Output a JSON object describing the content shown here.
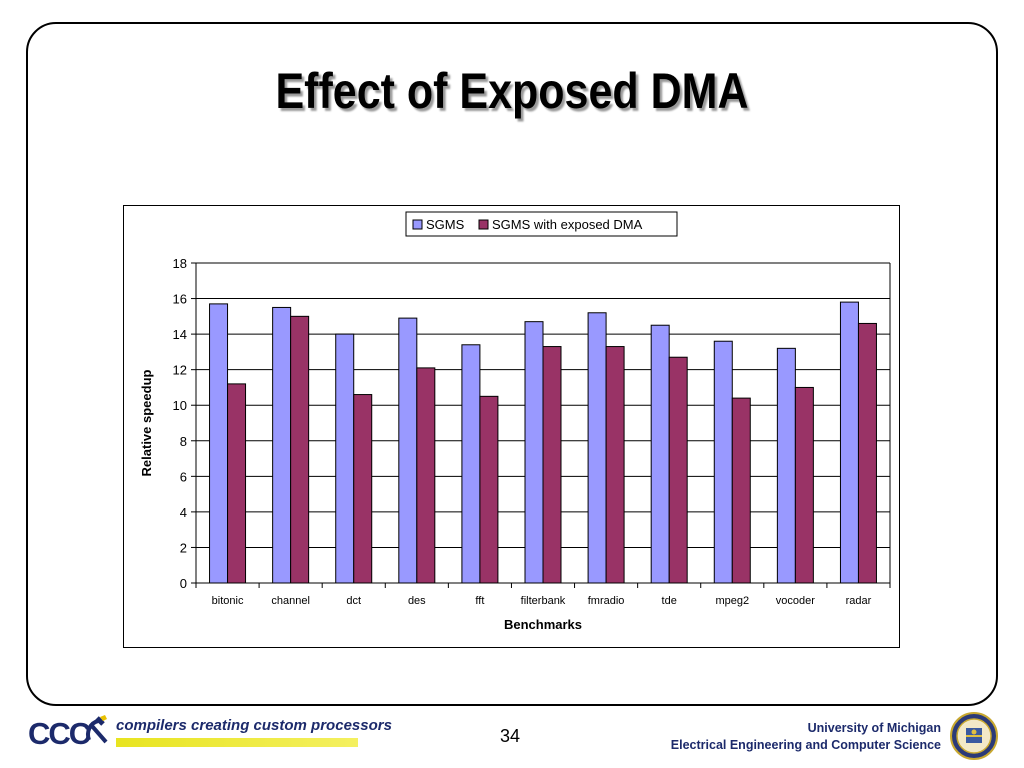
{
  "slide": {
    "title": "Effect of Exposed DMA",
    "page_number": "34"
  },
  "footer": {
    "logo_text": "CCC",
    "tagline": "compilers creating custom processors",
    "university": "University of Michigan",
    "department": "Electrical Engineering and Computer Science"
  },
  "colors": {
    "series1": "#9999ff",
    "series2": "#993366",
    "brand_blue": "#1c2a6b",
    "tagline_bar": "#e8e420"
  },
  "chart_data": {
    "type": "bar",
    "title": "",
    "xlabel": "Benchmarks",
    "ylabel": "Relative speedup",
    "ylim": [
      0,
      18
    ],
    "yticks": [
      0,
      2,
      4,
      6,
      8,
      10,
      12,
      14,
      16,
      18
    ],
    "grid": true,
    "legend_position": "top-right",
    "categories": [
      "bitonic",
      "channel",
      "dct",
      "des",
      "fft",
      "filterbank",
      "fmradio",
      "tde",
      "mpeg2",
      "vocoder",
      "radar"
    ],
    "series": [
      {
        "name": "SGMS",
        "color": "#9999ff",
        "values": [
          15.7,
          15.5,
          14.0,
          14.9,
          13.4,
          14.7,
          15.2,
          14.5,
          13.6,
          13.2,
          15.8
        ]
      },
      {
        "name": "SGMS with exposed DMA",
        "color": "#993366",
        "values": [
          11.2,
          15.0,
          10.6,
          12.1,
          10.5,
          13.3,
          13.3,
          12.7,
          10.4,
          11.0,
          14.6
        ]
      }
    ]
  }
}
